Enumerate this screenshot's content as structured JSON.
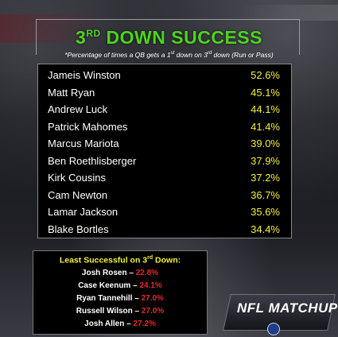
{
  "header": {
    "title_pre": "3",
    "title_sup": "RD",
    "title_post": " DOWN SUCCESS",
    "subtitle_a": "*Percentage of times a QB gets a 1",
    "subtitle_sup1": "st",
    "subtitle_b": " down on 3",
    "subtitle_sup2": "rd",
    "subtitle_c": " down (Run or Pass)"
  },
  "top_list": [
    {
      "name": "Jameis Winston",
      "pct": "52.6%"
    },
    {
      "name": "Matt Ryan",
      "pct": "45.1%"
    },
    {
      "name": "Andrew Luck",
      "pct": "44.1%"
    },
    {
      "name": "Patrick Mahomes",
      "pct": "41.4%"
    },
    {
      "name": "Marcus Mariota",
      "pct": "39.0%"
    },
    {
      "name": "Ben Roethlisberger",
      "pct": "37.9%"
    },
    {
      "name": "Kirk Cousins",
      "pct": "37.2%"
    },
    {
      "name": "Cam Newton",
      "pct": "36.7%"
    },
    {
      "name": "Lamar Jackson",
      "pct": "35.6%"
    },
    {
      "name": "Blake Bortles",
      "pct": "34.4%"
    }
  ],
  "least": {
    "title_a": "Least Successful on 3",
    "title_sup": "rd",
    "title_b": " Down:",
    "rows": [
      {
        "name": "Josh Rosen",
        "pct": "22.8%"
      },
      {
        "name": "Case Keenum",
        "pct": "24.1%"
      },
      {
        "name": "Ryan Tannehill",
        "pct": "27.0%"
      },
      {
        "name": "Russell Wilson",
        "pct": "27.0%"
      },
      {
        "name": "Josh Allen",
        "pct": "27.2%"
      }
    ]
  },
  "logo": {
    "text": "NFL MATCHUP"
  },
  "colors": {
    "title_green": "#4cd41e",
    "value_yellow": "#f3f03a",
    "least_red": "#e8282a"
  }
}
